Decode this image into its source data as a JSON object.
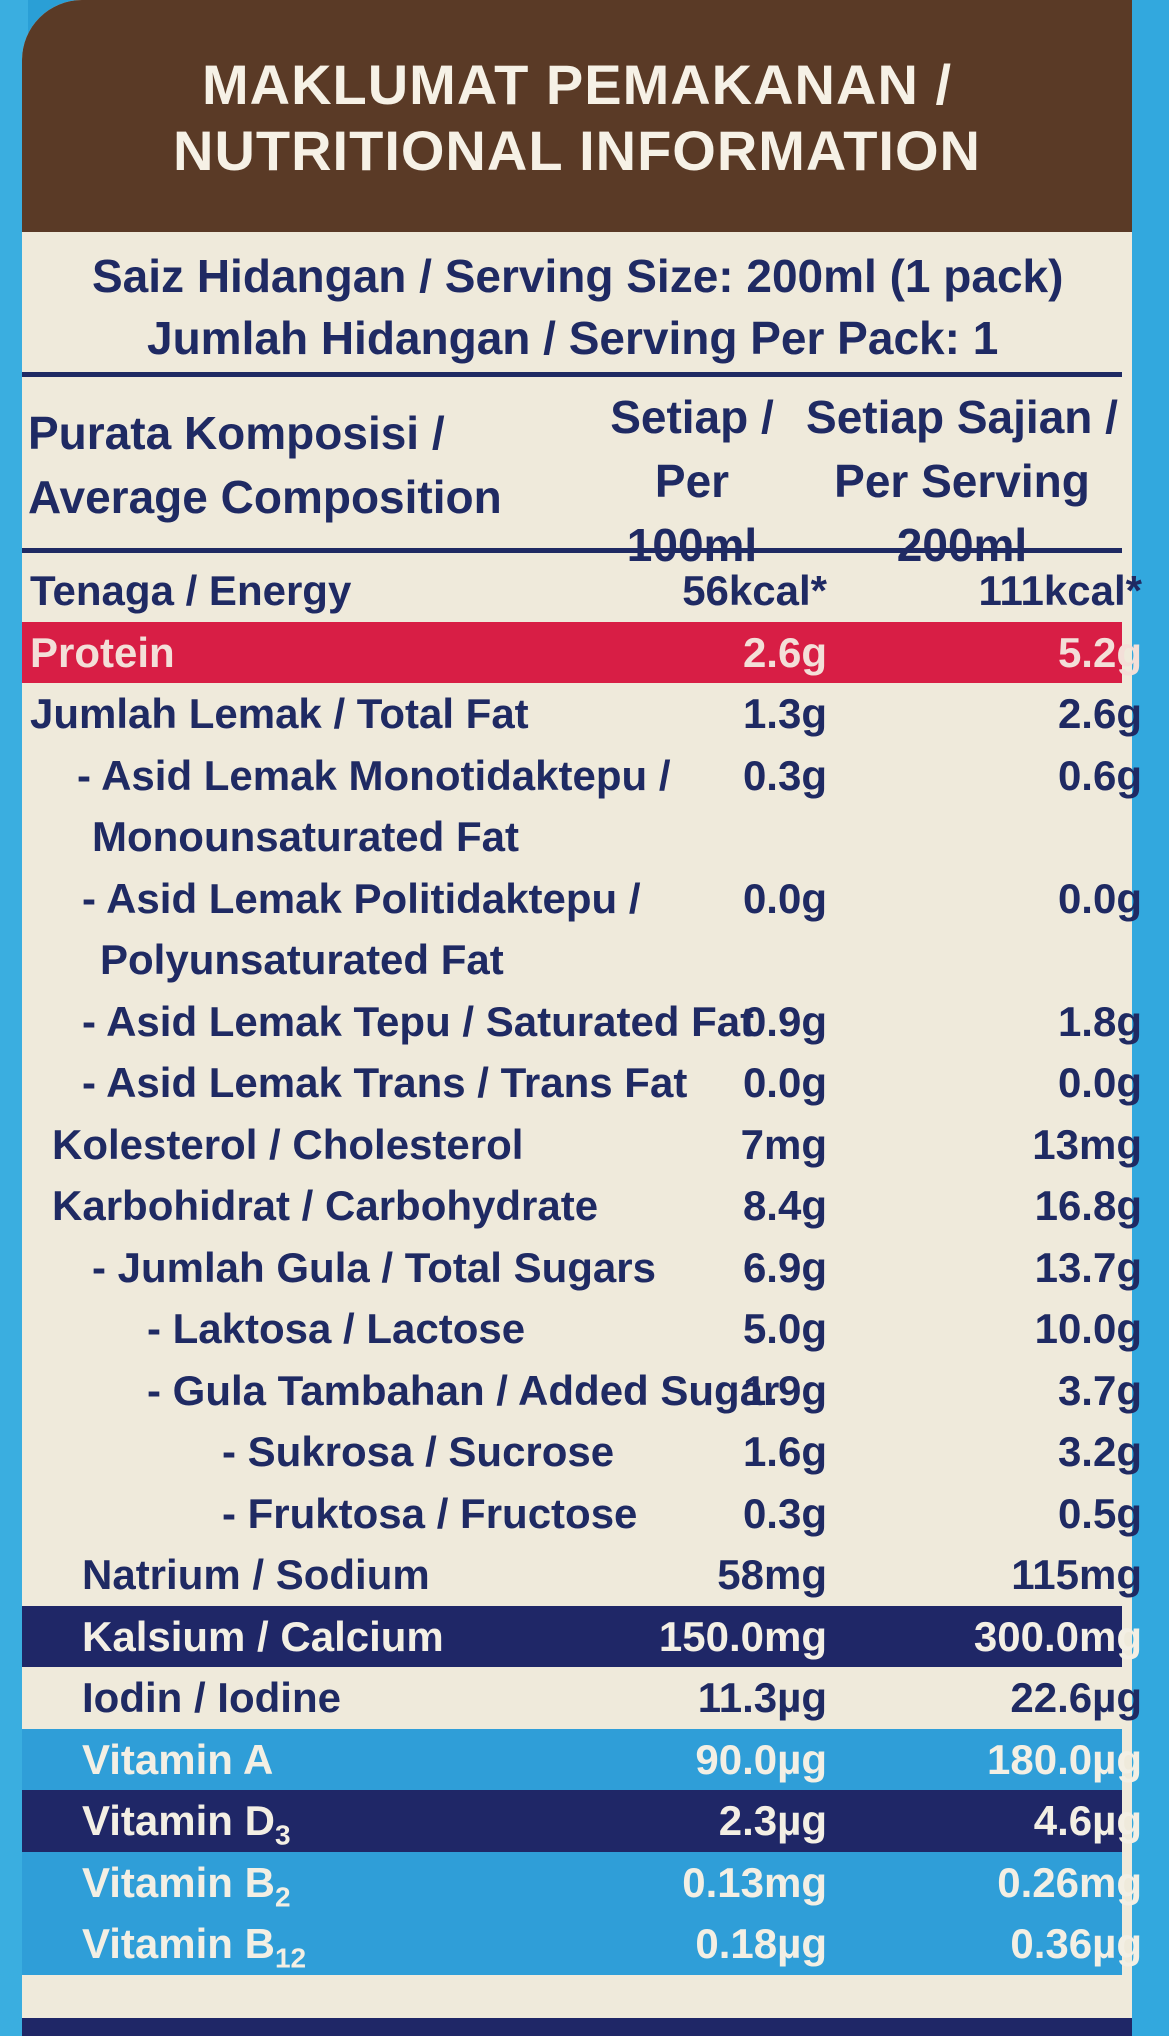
{
  "header": {
    "line1": "MAKLUMAT PEMAKANAN /",
    "line2": "NUTRITIONAL INFORMATION"
  },
  "serving": {
    "size": "Saiz Hidangan / Serving Size: 200ml (1 pack)",
    "per_pack": "Jumlah Hidangan / Serving Per Pack: 1"
  },
  "columns": {
    "label_line1": "Purata Komposisi /",
    "label_line2": "Average Composition",
    "per100_line1": "Setiap /",
    "per100_line2": "Per 100ml",
    "perserving_line1": "Setiap Sajian /",
    "perserving_line2": "Per Serving 200ml"
  },
  "rows": [
    {
      "label": "Tenaga / Energy",
      "per100": "56kcal*",
      "perserving": "111kcal*"
    },
    {
      "label": "Protein",
      "per100": "2.6g",
      "perserving": "5.2g"
    },
    {
      "label": "Jumlah Lemak / Total Fat",
      "per100": "1.3g",
      "perserving": "2.6g"
    },
    {
      "label": "- Asid Lemak Monotidaktepu /",
      "per100": "0.3g",
      "perserving": "0.6g"
    },
    {
      "label": "Monounsaturated Fat",
      "per100": "",
      "perserving": ""
    },
    {
      "label": "- Asid Lemak Politidaktepu /",
      "per100": "0.0g",
      "perserving": "0.0g"
    },
    {
      "label": "Polyunsaturated Fat",
      "per100": "",
      "perserving": ""
    },
    {
      "label": "- Asid Lemak Tepu / Saturated Fat",
      "per100": "0.9g",
      "perserving": "1.8g"
    },
    {
      "label": "- Asid Lemak Trans / Trans Fat",
      "per100": "0.0g",
      "perserving": "0.0g"
    },
    {
      "label": "Kolesterol / Cholesterol",
      "per100": "7mg",
      "perserving": "13mg"
    },
    {
      "label": "Karbohidrat / Carbohydrate",
      "per100": "8.4g",
      "perserving": "16.8g"
    },
    {
      "label": "- Jumlah Gula / Total Sugars",
      "per100": "6.9g",
      "perserving": "13.7g"
    },
    {
      "label": "- Laktosa / Lactose",
      "per100": "5.0g",
      "perserving": "10.0g"
    },
    {
      "label": "- Gula Tambahan / Added Sugar",
      "per100": "1.9g",
      "perserving": "3.7g"
    },
    {
      "label": "- Sukrosa / Sucrose",
      "per100": "1.6g",
      "perserving": "3.2g"
    },
    {
      "label": "- Fruktosa / Fructose",
      "per100": "0.3g",
      "perserving": "0.5g"
    },
    {
      "label": "Natrium / Sodium",
      "per100": "58mg",
      "perserving": "115mg"
    },
    {
      "label": "Kalsium / Calcium",
      "per100": "150.0mg",
      "perserving": "300.0mg"
    },
    {
      "label": "Iodin / Iodine",
      "per100": "11.3µg",
      "perserving": "22.6µg"
    },
    {
      "label": "Vitamin A",
      "per100": "90.0µg",
      "perserving": "180.0µg"
    },
    {
      "label": "Vitamin D",
      "label_sub": "3",
      "per100": "2.3µg",
      "perserving": "4.6µg"
    },
    {
      "label": "Vitamin B",
      "label_sub": "2",
      "per100": "0.13mg",
      "perserving": "0.26mg"
    },
    {
      "label": "Vitamin B",
      "label_sub": "12",
      "per100": "0.18µg",
      "perserving": "0.36µg"
    }
  ],
  "colors": {
    "header_brown": "#5a3a26",
    "text_navy": "#1f2a63",
    "protein_red": "#d81e45",
    "calcium_navy": "#1f2767",
    "vitamin_blue": "#2f9ed8",
    "panel_cream": "#efeadb"
  }
}
